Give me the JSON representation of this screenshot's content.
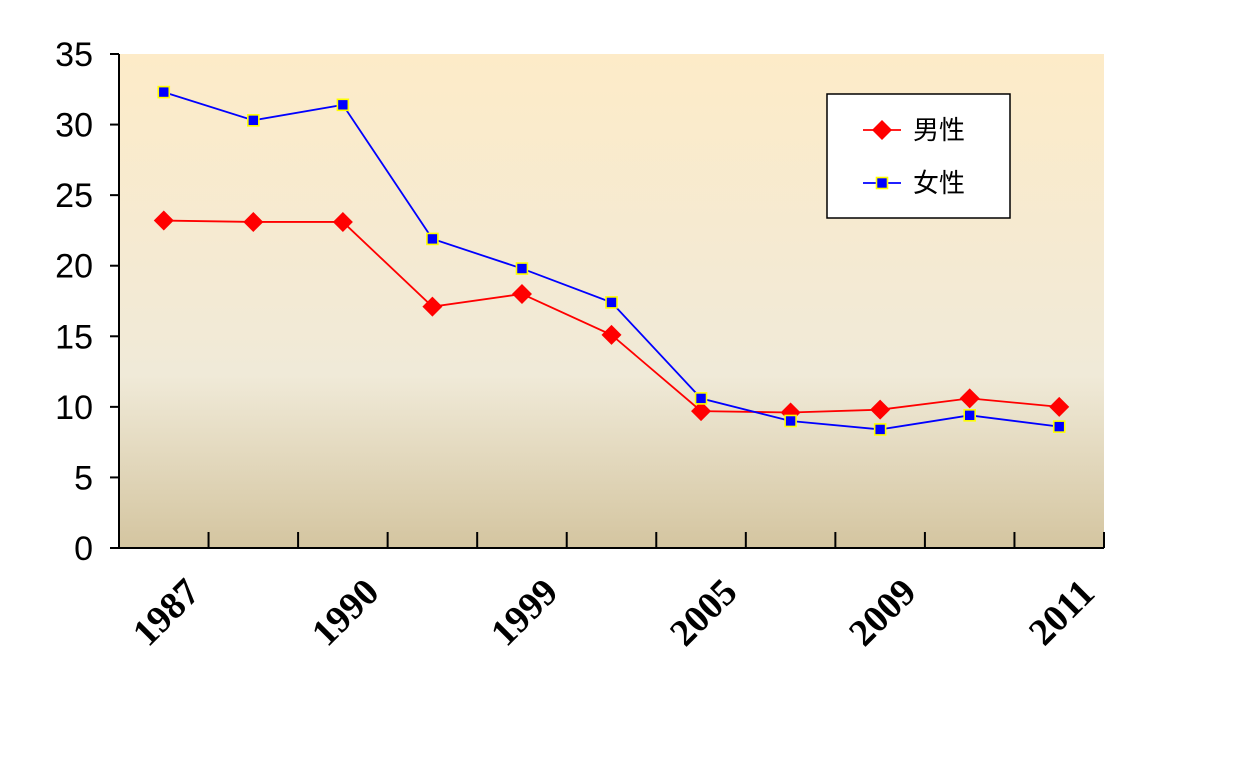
{
  "chart_data": {
    "type": "line",
    "title": "",
    "xlabel": "",
    "ylabel": "",
    "ylim": [
      0,
      35
    ],
    "yticks": [
      0,
      5,
      10,
      15,
      20,
      25,
      30,
      35
    ],
    "x_tick_labels": [
      {
        "index": 0,
        "label": "1987"
      },
      {
        "index": 2,
        "label": "1990"
      },
      {
        "index": 4,
        "label": "1999"
      },
      {
        "index": 6,
        "label": "2005"
      },
      {
        "index": 8,
        "label": "2009"
      },
      {
        "index": 10,
        "label": "2011"
      }
    ],
    "point_count": 11,
    "legend_position": "top-right",
    "grid": false,
    "background_gradient": [
      "#fdebc8",
      "#f0ead8",
      "#d4c5a0"
    ],
    "series": [
      {
        "name": "男性",
        "color": "#ff0000",
        "marker": "diamond",
        "values": [
          23.2,
          23.1,
          23.1,
          17.1,
          18.0,
          15.1,
          9.7,
          9.6,
          9.8,
          10.6,
          10.0
        ]
      },
      {
        "name": "女性",
        "color": "#0000ff",
        "marker": "square",
        "marker_fill": "#0000ff",
        "marker_edge": "#ffff00",
        "values": [
          32.3,
          30.3,
          31.4,
          21.9,
          19.8,
          17.4,
          10.6,
          9.0,
          8.4,
          9.4,
          8.6
        ]
      }
    ]
  }
}
